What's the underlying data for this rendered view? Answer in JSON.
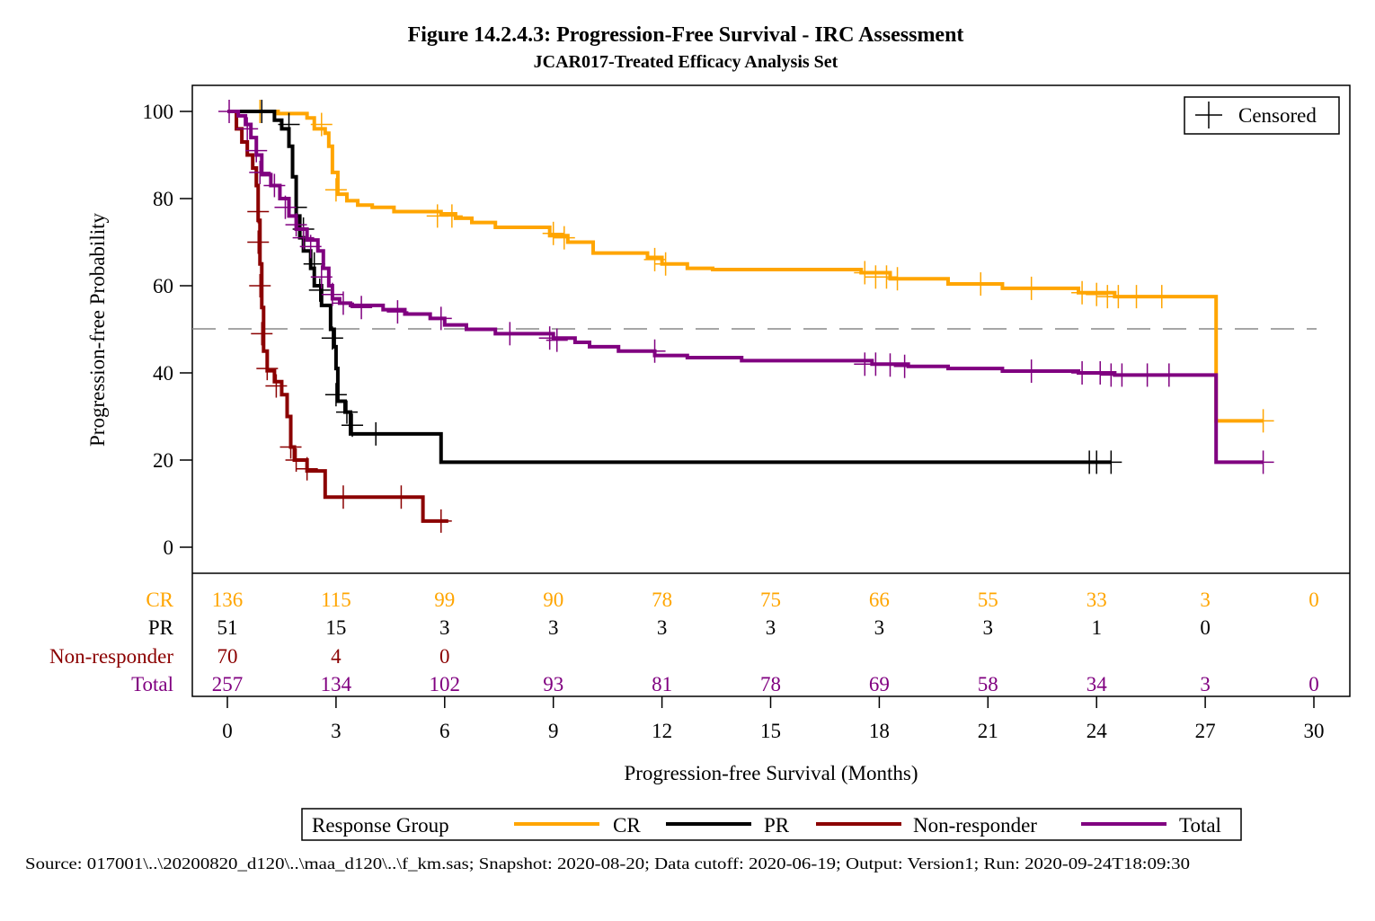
{
  "chart_data": {
    "type": "line",
    "subtype": "kaplan-meier",
    "title": "Figure 14.2.4.3: Progression-Free Survival - IRC Assessment",
    "subtitle": "JCAR017-Treated Efficacy Analysis Set",
    "xlabel": "Progression-free Survival (Months)",
    "ylabel": "Progression-free Probability",
    "xlim": [
      0,
      30
    ],
    "ylim": [
      0,
      100
    ],
    "xticks": [
      "0",
      "3",
      "6",
      "9",
      "12",
      "15",
      "18",
      "21",
      "24",
      "27",
      "30"
    ],
    "yticks": [
      "0",
      "20",
      "40",
      "60",
      "80",
      "100"
    ],
    "reference_line_y": 50,
    "censored_legend": "Censored",
    "legend_title": "Response Group",
    "legend_position": "bottom",
    "series": [
      {
        "name": "CR",
        "color": "#FFA500",
        "steps": [
          [
            0,
            100
          ],
          [
            1.4,
            99.5
          ],
          [
            2.2,
            98.5
          ],
          [
            2.4,
            96
          ],
          [
            2.7,
            95
          ],
          [
            2.8,
            92
          ],
          [
            2.9,
            86
          ],
          [
            3.05,
            81
          ],
          [
            3.3,
            79.5
          ],
          [
            3.6,
            78.5
          ],
          [
            4.0,
            78
          ],
          [
            4.6,
            77
          ],
          [
            5.9,
            76.5
          ],
          [
            6.3,
            75.5
          ],
          [
            6.75,
            74.5
          ],
          [
            7.4,
            73.4
          ],
          [
            8.9,
            71.5
          ],
          [
            9.4,
            70
          ],
          [
            10.1,
            67.5
          ],
          [
            11.6,
            66.5
          ],
          [
            12.0,
            65
          ],
          [
            12.7,
            64
          ],
          [
            13.4,
            63.7
          ],
          [
            17.5,
            63
          ],
          [
            18.3,
            61.6
          ],
          [
            19.9,
            60.4
          ],
          [
            21.4,
            59.4
          ],
          [
            23.5,
            58.4
          ],
          [
            24.5,
            57.5
          ],
          [
            27.3,
            57.5
          ],
          [
            27.3,
            29
          ]
        ],
        "end": 28.6,
        "censored": [
          [
            0.9,
            100
          ],
          [
            2.6,
            97
          ],
          [
            3.0,
            82
          ],
          [
            5.8,
            76
          ],
          [
            6.2,
            76
          ],
          [
            9.0,
            72
          ],
          [
            9.3,
            71
          ],
          [
            11.8,
            66
          ],
          [
            12.1,
            65
          ],
          [
            17.6,
            63
          ],
          [
            17.9,
            62
          ],
          [
            18.2,
            62
          ],
          [
            18.5,
            61.6
          ],
          [
            20.8,
            60.4
          ],
          [
            22.2,
            59.4
          ],
          [
            23.6,
            58.4
          ],
          [
            24.0,
            58
          ],
          [
            24.3,
            57.5
          ],
          [
            24.6,
            57.5
          ],
          [
            25.1,
            57.5
          ],
          [
            25.8,
            57.5
          ],
          [
            28.6,
            29
          ]
        ]
      },
      {
        "name": "PR",
        "color": "#000000",
        "steps": [
          [
            0,
            100
          ],
          [
            1.3,
            98
          ],
          [
            1.5,
            96
          ],
          [
            1.7,
            92
          ],
          [
            1.8,
            85
          ],
          [
            1.9,
            76
          ],
          [
            2.0,
            71
          ],
          [
            2.1,
            68
          ],
          [
            2.3,
            64
          ],
          [
            2.4,
            60
          ],
          [
            2.6,
            55.5
          ],
          [
            2.8,
            55.5
          ],
          [
            2.85,
            50
          ],
          [
            2.95,
            46
          ],
          [
            3.0,
            41
          ],
          [
            3.05,
            33.5
          ],
          [
            3.25,
            31
          ],
          [
            3.4,
            26
          ],
          [
            5.9,
            26
          ],
          [
            5.9,
            19.5
          ]
        ],
        "end": 24.4,
        "censored": [
          [
            0.95,
            100
          ],
          [
            1.7,
            97
          ],
          [
            1.9,
            78
          ],
          [
            2.1,
            73
          ],
          [
            2.4,
            65
          ],
          [
            2.55,
            59
          ],
          [
            2.9,
            48
          ],
          [
            3.0,
            35
          ],
          [
            3.3,
            31
          ],
          [
            3.45,
            28
          ],
          [
            4.1,
            26
          ],
          [
            23.8,
            19.5
          ],
          [
            24.0,
            19.5
          ],
          [
            24.4,
            19.5
          ]
        ]
      },
      {
        "name": "Non-responder",
        "color": "#8B0000",
        "steps": [
          [
            0,
            100
          ],
          [
            0.25,
            96
          ],
          [
            0.4,
            93
          ],
          [
            0.55,
            90
          ],
          [
            0.7,
            87
          ],
          [
            0.8,
            83
          ],
          [
            0.85,
            75
          ],
          [
            0.9,
            65
          ],
          [
            0.95,
            55
          ],
          [
            1.0,
            45
          ],
          [
            1.1,
            40.5
          ],
          [
            1.3,
            38
          ],
          [
            1.5,
            35
          ],
          [
            1.65,
            30
          ],
          [
            1.75,
            23
          ],
          [
            1.85,
            20
          ],
          [
            2.2,
            17.5
          ],
          [
            2.7,
            11.5
          ],
          [
            5.4,
            6
          ]
        ],
        "end": 6.1,
        "censored": [
          [
            0.85,
            77
          ],
          [
            0.85,
            70
          ],
          [
            0.9,
            60
          ],
          [
            0.95,
            49
          ],
          [
            1.1,
            41
          ],
          [
            1.35,
            37
          ],
          [
            1.75,
            23
          ],
          [
            1.9,
            20
          ],
          [
            2.2,
            18
          ],
          [
            3.2,
            11.5
          ],
          [
            4.8,
            11.5
          ],
          [
            5.9,
            6
          ]
        ]
      },
      {
        "name": "Total",
        "color": "#800080",
        "steps": [
          [
            0,
            100
          ],
          [
            0.3,
            99
          ],
          [
            0.5,
            97
          ],
          [
            0.65,
            94
          ],
          [
            0.8,
            90
          ],
          [
            0.95,
            85.5
          ],
          [
            1.2,
            83
          ],
          [
            1.45,
            80
          ],
          [
            1.7,
            76
          ],
          [
            1.9,
            73
          ],
          [
            2.2,
            70.5
          ],
          [
            2.5,
            68
          ],
          [
            2.65,
            64
          ],
          [
            2.8,
            60
          ],
          [
            2.9,
            57
          ],
          [
            3.1,
            56
          ],
          [
            3.4,
            55.5
          ],
          [
            4.3,
            54.5
          ],
          [
            4.9,
            53.5
          ],
          [
            5.6,
            52.5
          ],
          [
            6.0,
            51
          ],
          [
            6.6,
            50
          ],
          [
            7.4,
            49
          ],
          [
            9.0,
            48
          ],
          [
            9.6,
            47
          ],
          [
            10.0,
            46
          ],
          [
            10.8,
            45
          ],
          [
            11.8,
            44
          ],
          [
            12.7,
            43.5
          ],
          [
            14.2,
            42.8
          ],
          [
            17.8,
            42
          ],
          [
            18.8,
            41.5
          ],
          [
            19.9,
            41
          ],
          [
            21.4,
            40.4
          ],
          [
            23.5,
            40
          ],
          [
            24.5,
            39.5
          ],
          [
            27.3,
            39.5
          ],
          [
            27.3,
            19.5
          ]
        ],
        "end": 28.6,
        "censored": [
          [
            0.05,
            100
          ],
          [
            0.55,
            96
          ],
          [
            0.8,
            91
          ],
          [
            0.9,
            86
          ],
          [
            1.3,
            83
          ],
          [
            1.6,
            78
          ],
          [
            1.9,
            74
          ],
          [
            2.1,
            71
          ],
          [
            2.3,
            69
          ],
          [
            2.6,
            62
          ],
          [
            2.9,
            58
          ],
          [
            3.2,
            56
          ],
          [
            3.7,
            55
          ],
          [
            4.7,
            54
          ],
          [
            5.9,
            52.5
          ],
          [
            7.8,
            49
          ],
          [
            8.9,
            48
          ],
          [
            9.1,
            47.5
          ],
          [
            11.8,
            45
          ],
          [
            17.6,
            42
          ],
          [
            17.9,
            42
          ],
          [
            18.3,
            41.8
          ],
          [
            18.7,
            41.5
          ],
          [
            22.2,
            40.4
          ],
          [
            23.6,
            40
          ],
          [
            24.1,
            40
          ],
          [
            24.4,
            39.5
          ],
          [
            24.7,
            39.5
          ],
          [
            25.4,
            39.5
          ],
          [
            26.0,
            39.5
          ],
          [
            28.6,
            19.5
          ]
        ]
      }
    ],
    "risk_table": {
      "times": [
        0,
        3,
        6,
        9,
        12,
        15,
        18,
        21,
        24,
        27,
        30
      ],
      "rows": [
        {
          "label": "CR",
          "color": "#FFA500",
          "values": [
            "136",
            "115",
            "99",
            "90",
            "78",
            "75",
            "66",
            "55",
            "33",
            "3",
            "0"
          ]
        },
        {
          "label": "PR",
          "color": "#000000",
          "values": [
            "51",
            "15",
            "3",
            "3",
            "3",
            "3",
            "3",
            "3",
            "1",
            "0"
          ]
        },
        {
          "label": "Non-responder",
          "color": "#8B0000",
          "values": [
            "70",
            "4",
            "0"
          ]
        },
        {
          "label": "Total",
          "color": "#800080",
          "values": [
            "257",
            "134",
            "102",
            "93",
            "81",
            "78",
            "69",
            "58",
            "34",
            "3",
            "0"
          ]
        }
      ]
    }
  },
  "footer": {
    "source": "Source: 017001\\..\\20200820_d120\\..\\maa_d120\\..\\f_km.sas; Snapshot: 2020-08-20; Data cutoff: 2020-06-19; Output: Version1; Run: 2020-09-24T18:09:30"
  }
}
